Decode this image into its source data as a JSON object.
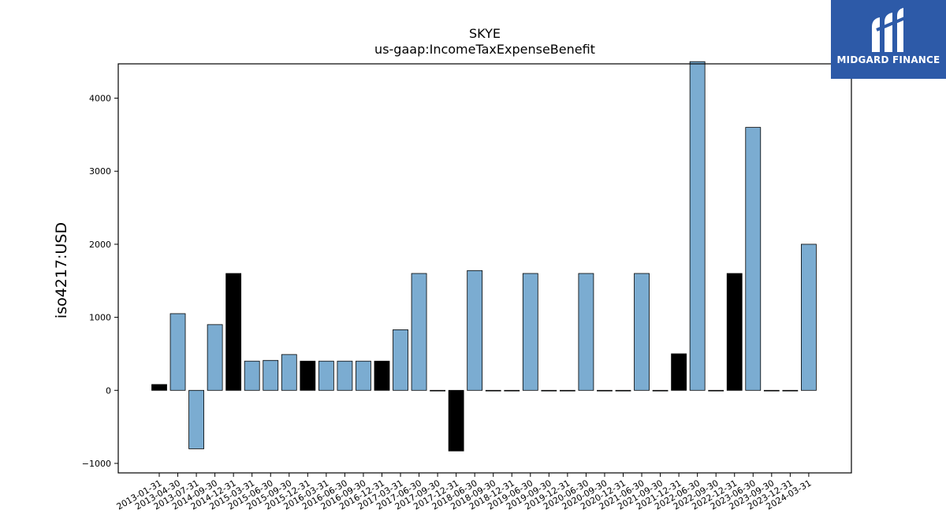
{
  "chart_data": {
    "type": "bar",
    "title": "SKYE",
    "subtitle": "us-gaap:IncomeTaxExpenseBenefit",
    "xlabel": "",
    "ylabel": "iso4217:USD",
    "ylim": [
      -1130,
      4470
    ],
    "yticks": [
      -1000,
      0,
      1000,
      2000,
      3000,
      4000
    ],
    "ytick_labels": [
      "−1000",
      "0",
      "1000",
      "2000",
      "3000",
      "4000"
    ],
    "grid": false,
    "categories": [
      "2013-01-31",
      "2013-04-30",
      "2013-07-31",
      "2014-09-30",
      "2014-12-31",
      "2015-03-31",
      "2015-06-30",
      "2015-09-30",
      "2015-12-31",
      "2016-03-31",
      "2016-06-30",
      "2016-09-30",
      "2016-12-31",
      "2017-03-31",
      "2017-06-30",
      "2017-09-30",
      "2017-12-31",
      "2018-06-30",
      "2018-09-30",
      "2018-12-31",
      "2019-06-30",
      "2019-09-30",
      "2019-12-31",
      "2020-06-30",
      "2020-09-30",
      "2020-12-31",
      "2021-06-30",
      "2021-09-30",
      "2021-12-31",
      "2022-06-30",
      "2022-09-30",
      "2022-12-31",
      "2023-06-30",
      "2023-09-30",
      "2023-12-31",
      "2024-03-31"
    ],
    "values": [
      80,
      1050,
      -800,
      900,
      1600,
      400,
      410,
      490,
      400,
      400,
      400,
      400,
      400,
      830,
      1600,
      0,
      -830,
      1640,
      0,
      0,
      1600,
      0,
      0,
      1600,
      0,
      0,
      1600,
      0,
      500,
      4500,
      0,
      1600,
      3600,
      0,
      0,
      2000
    ],
    "bar_colors": [
      "#000000",
      "#7bacd1",
      "#7bacd1",
      "#7bacd1",
      "#000000",
      "#7bacd1",
      "#7bacd1",
      "#7bacd1",
      "#000000",
      "#7bacd1",
      "#7bacd1",
      "#7bacd1",
      "#000000",
      "#7bacd1",
      "#7bacd1",
      "#7bacd1",
      "#000000",
      "#7bacd1",
      "#7bacd1",
      "#7bacd1",
      "#7bacd1",
      "#7bacd1",
      "#7bacd1",
      "#7bacd1",
      "#7bacd1",
      "#7bacd1",
      "#7bacd1",
      "#7bacd1",
      "#000000",
      "#7bacd1",
      "#7bacd1",
      "#000000",
      "#7bacd1",
      "#7bacd1",
      "#7bacd1",
      "#7bacd1"
    ]
  },
  "logo": {
    "text": "MIDGARD FINANCE",
    "color": "#2d5aa8"
  }
}
